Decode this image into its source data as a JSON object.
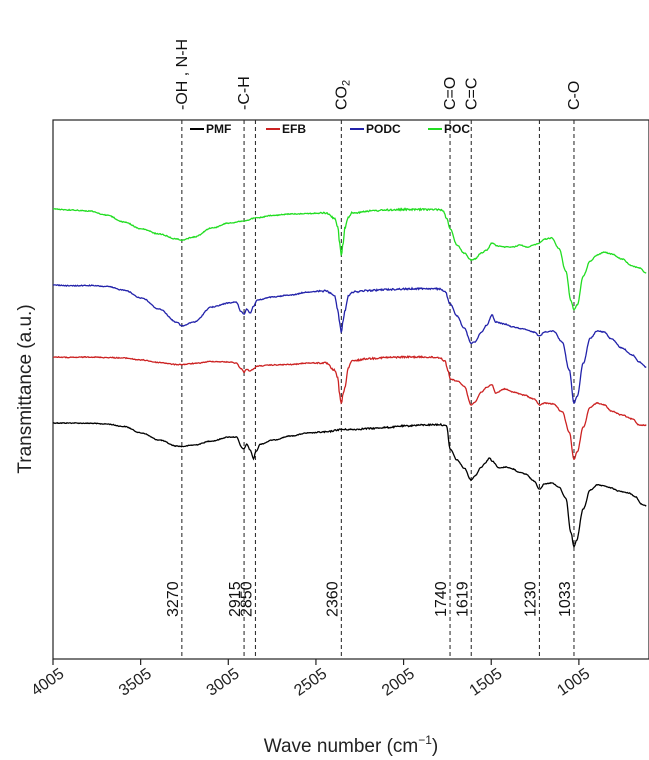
{
  "chart_data": {
    "type": "line",
    "title": "",
    "xlabel_main": "Wave number (cm",
    "xlabel_sup": "−1",
    "xlabel_close": ")",
    "ylabel": "Transmittance (a.u.)",
    "xlim": [
      4005,
      605
    ],
    "x_ticks": [
      "4005",
      "3505",
      "3005",
      "2505",
      "2005",
      "1505",
      "1005"
    ],
    "x_tick_values": [
      4005,
      3505,
      3005,
      2505,
      2005,
      1505,
      1005
    ],
    "y_units": "a.u. (curves offset vertically)",
    "legend": {
      "placement": "top",
      "entries": [
        "PMF",
        "EFB",
        "PODC",
        "POC"
      ]
    },
    "group_labels": [
      {
        "text": "-OH , N-H",
        "x": 3270
      },
      {
        "text": "-C-H",
        "x": 2915
      },
      {
        "text": "CO",
        "sub": "2",
        "x": 2360
      },
      {
        "text": "C=O",
        "x": 1740
      },
      {
        "text": "C=C",
        "x": 1619
      },
      {
        "text": "C-O",
        "x": 1033
      }
    ],
    "peak_lines": [
      {
        "label": "3270",
        "x": 3270
      },
      {
        "label": "2915",
        "x": 2915
      },
      {
        "label": "2850",
        "x": 2850
      },
      {
        "label": "2360",
        "x": 2360
      },
      {
        "label": "1740",
        "x": 1740
      },
      {
        "label": "1619",
        "x": 1619
      },
      {
        "label": "1230",
        "x": 1230
      },
      {
        "label": "1033",
        "x": 1033
      }
    ],
    "series": [
      {
        "name": "PMF",
        "color": "#000000",
        "noise": 0.4,
        "points": [
          [
            4005,
            0.0
          ],
          [
            3900,
            0.05
          ],
          [
            3800,
            0.3
          ],
          [
            3700,
            1.0
          ],
          [
            3600,
            3.5
          ],
          [
            3500,
            10.0
          ],
          [
            3400,
            17.0
          ],
          [
            3300,
            23.0
          ],
          [
            3270,
            23.5
          ],
          [
            3200,
            22.0
          ],
          [
            3100,
            18.0
          ],
          [
            3000,
            14.0
          ],
          [
            2960,
            14.0
          ],
          [
            2925,
            25.0
          ],
          [
            2915,
            26.0
          ],
          [
            2900,
            21.0
          ],
          [
            2880,
            27.0
          ],
          [
            2860,
            36.0
          ],
          [
            2850,
            29.0
          ],
          [
            2820,
            21.0
          ],
          [
            2750,
            17.0
          ],
          [
            2650,
            13.0
          ],
          [
            2550,
            10.0
          ],
          [
            2450,
            9.0
          ],
          [
            2360,
            6.5
          ],
          [
            2300,
            6.5
          ],
          [
            2200,
            5.5
          ],
          [
            2100,
            4.5
          ],
          [
            2000,
            3.0
          ],
          [
            1900,
            2.0
          ],
          [
            1800,
            1.5
          ],
          [
            1760,
            3.0
          ],
          [
            1740,
            26.0
          ],
          [
            1700,
            37.0
          ],
          [
            1660,
            45.0
          ],
          [
            1619,
            57.0
          ],
          [
            1600,
            53.0
          ],
          [
            1560,
            44.0
          ],
          [
            1540,
            40.0
          ],
          [
            1515,
            35.0
          ],
          [
            1500,
            38.0
          ],
          [
            1460,
            45.0
          ],
          [
            1420,
            44.0
          ],
          [
            1380,
            46.0
          ],
          [
            1350,
            49.0
          ],
          [
            1310,
            51.0
          ],
          [
            1260,
            58.0
          ],
          [
            1230,
            66.0
          ],
          [
            1200,
            61.0
          ],
          [
            1160,
            60.0
          ],
          [
            1120,
            64.0
          ],
          [
            1080,
            75.0
          ],
          [
            1050,
            110.0
          ],
          [
            1033,
            124.0
          ],
          [
            1020,
            118.0
          ],
          [
            980,
            86.0
          ],
          [
            940,
            67.0
          ],
          [
            900,
            62.0
          ],
          [
            860,
            63.0
          ],
          [
            820,
            65.0
          ],
          [
            780,
            68.0
          ],
          [
            720,
            70.0
          ],
          [
            680,
            74.0
          ],
          [
            650,
            81.0
          ],
          [
            620,
            83.0
          ]
        ]
      },
      {
        "name": "EFB",
        "color": "#cc2222",
        "noise": 0.45,
        "points": [
          [
            4005,
            0.0
          ],
          [
            3900,
            0.5
          ],
          [
            3800,
            0.0
          ],
          [
            3700,
            0.5
          ],
          [
            3600,
            1.0
          ],
          [
            3500,
            3.0
          ],
          [
            3400,
            5.5
          ],
          [
            3300,
            7.5
          ],
          [
            3270,
            7.5
          ],
          [
            3200,
            6.5
          ],
          [
            3100,
            4.5
          ],
          [
            3000,
            5.0
          ],
          [
            2960,
            6.0
          ],
          [
            2930,
            12.0
          ],
          [
            2915,
            15.0
          ],
          [
            2900,
            12.0
          ],
          [
            2880,
            14.0
          ],
          [
            2860,
            12.0
          ],
          [
            2840,
            9.0
          ],
          [
            2750,
            8.0
          ],
          [
            2650,
            7.5
          ],
          [
            2550,
            6.0
          ],
          [
            2450,
            6.0
          ],
          [
            2400,
            13.0
          ],
          [
            2380,
            21.0
          ],
          [
            2370,
            38.0
          ],
          [
            2360,
            47.0
          ],
          [
            2350,
            37.0
          ],
          [
            2340,
            30.0
          ],
          [
            2320,
            11.0
          ],
          [
            2300,
            4.0
          ],
          [
            2200,
            1.5
          ],
          [
            2100,
            0.5
          ],
          [
            2000,
            0.0
          ],
          [
            1900,
            0.0
          ],
          [
            1800,
            0.5
          ],
          [
            1770,
            4.0
          ],
          [
            1750,
            14.0
          ],
          [
            1740,
            22.0
          ],
          [
            1700,
            24.0
          ],
          [
            1660,
            29.0
          ],
          [
            1619,
            48.0
          ],
          [
            1600,
            45.0
          ],
          [
            1560,
            35.0
          ],
          [
            1530,
            30.0
          ],
          [
            1500,
            28.0
          ],
          [
            1480,
            36.0
          ],
          [
            1430,
            32.0
          ],
          [
            1380,
            35.0
          ],
          [
            1320,
            38.0
          ],
          [
            1260,
            42.0
          ],
          [
            1230,
            48.0
          ],
          [
            1200,
            46.0
          ],
          [
            1150,
            47.0
          ],
          [
            1100,
            55.0
          ],
          [
            1060,
            75.0
          ],
          [
            1033,
            102.0
          ],
          [
            1015,
            95.0
          ],
          [
            980,
            70.0
          ],
          [
            940,
            50.0
          ],
          [
            900,
            46.0
          ],
          [
            860,
            48.0
          ],
          [
            820,
            54.0
          ],
          [
            760,
            58.0
          ],
          [
            700,
            62.0
          ],
          [
            660,
            68.0
          ],
          [
            620,
            68.0
          ]
        ]
      },
      {
        "name": "PODC",
        "color": "#2222aa",
        "noise": 0.45,
        "points": [
          [
            4005,
            0.0
          ],
          [
            3900,
            0.8
          ],
          [
            3800,
            0.5
          ],
          [
            3700,
            1.5
          ],
          [
            3600,
            5.0
          ],
          [
            3500,
            13.0
          ],
          [
            3400,
            24.0
          ],
          [
            3300,
            37.0
          ],
          [
            3270,
            41.0
          ],
          [
            3200,
            37.0
          ],
          [
            3100,
            22.0
          ],
          [
            3000,
            18.0
          ],
          [
            2960,
            17.0
          ],
          [
            2930,
            27.0
          ],
          [
            2915,
            29.0
          ],
          [
            2900,
            24.0
          ],
          [
            2880,
            28.0
          ],
          [
            2860,
            21.0
          ],
          [
            2840,
            15.0
          ],
          [
            2750,
            12.0
          ],
          [
            2650,
            10.0
          ],
          [
            2550,
            7.0
          ],
          [
            2450,
            6.0
          ],
          [
            2400,
            10.0
          ],
          [
            2380,
            25.0
          ],
          [
            2370,
            38.0
          ],
          [
            2360,
            47.0
          ],
          [
            2350,
            35.0
          ],
          [
            2340,
            26.0
          ],
          [
            2320,
            11.0
          ],
          [
            2300,
            7.0
          ],
          [
            2200,
            5.5
          ],
          [
            2100,
            4.5
          ],
          [
            2000,
            4.0
          ],
          [
            1900,
            3.5
          ],
          [
            1800,
            4.0
          ],
          [
            1770,
            6.0
          ],
          [
            1740,
            19.0
          ],
          [
            1700,
            31.0
          ],
          [
            1660,
            43.0
          ],
          [
            1619,
            58.0
          ],
          [
            1600,
            57.0
          ],
          [
            1560,
            47.0
          ],
          [
            1530,
            40.0
          ],
          [
            1500,
            30.0
          ],
          [
            1480,
            37.0
          ],
          [
            1430,
            39.0
          ],
          [
            1380,
            42.0
          ],
          [
            1320,
            44.0
          ],
          [
            1260,
            47.0
          ],
          [
            1230,
            51.0
          ],
          [
            1200,
            47.0
          ],
          [
            1150,
            46.0
          ],
          [
            1100,
            57.0
          ],
          [
            1060,
            85.0
          ],
          [
            1033,
            118.0
          ],
          [
            1015,
            111.0
          ],
          [
            980,
            78.0
          ],
          [
            940,
            53.0
          ],
          [
            900,
            46.0
          ],
          [
            860,
            47.0
          ],
          [
            820,
            54.0
          ],
          [
            760,
            63.0
          ],
          [
            700,
            70.0
          ],
          [
            660,
            77.0
          ],
          [
            620,
            82.0
          ]
        ]
      },
      {
        "name": "POC",
        "color": "#22dd22",
        "noise": 0.45,
        "points": [
          [
            4005,
            0.0
          ],
          [
            3900,
            1.0
          ],
          [
            3800,
            2.0
          ],
          [
            3700,
            6.0
          ],
          [
            3600,
            13.0
          ],
          [
            3500,
            20.0
          ],
          [
            3400,
            25.0
          ],
          [
            3300,
            30.0
          ],
          [
            3270,
            31.0
          ],
          [
            3200,
            28.0
          ],
          [
            3100,
            19.0
          ],
          [
            3000,
            14.0
          ],
          [
            2915,
            12.0
          ],
          [
            2850,
            9.0
          ],
          [
            2750,
            6.5
          ],
          [
            2650,
            5.0
          ],
          [
            2550,
            4.5
          ],
          [
            2450,
            4.0
          ],
          [
            2400,
            9.0
          ],
          [
            2380,
            18.0
          ],
          [
            2370,
            34.0
          ],
          [
            2360,
            47.0
          ],
          [
            2350,
            34.0
          ],
          [
            2340,
            19.0
          ],
          [
            2320,
            8.0
          ],
          [
            2300,
            4.0
          ],
          [
            2200,
            2.0
          ],
          [
            2100,
            1.0
          ],
          [
            2000,
            0.5
          ],
          [
            1900,
            0.5
          ],
          [
            1800,
            0.5
          ],
          [
            1780,
            1.5
          ],
          [
            1760,
            9.0
          ],
          [
            1740,
            20.0
          ],
          [
            1700,
            36.0
          ],
          [
            1660,
            44.0
          ],
          [
            1619,
            51.0
          ],
          [
            1600,
            50.0
          ],
          [
            1560,
            44.0
          ],
          [
            1530,
            41.0
          ],
          [
            1500,
            34.0
          ],
          [
            1470,
            37.0
          ],
          [
            1430,
            38.0
          ],
          [
            1380,
            38.0
          ],
          [
            1340,
            36.0
          ],
          [
            1300,
            38.0
          ],
          [
            1260,
            36.0
          ],
          [
            1230,
            34.0
          ],
          [
            1200,
            30.0
          ],
          [
            1160,
            29.0
          ],
          [
            1120,
            39.0
          ],
          [
            1080,
            62.0
          ],
          [
            1050,
            92.0
          ],
          [
            1033,
            101.0
          ],
          [
            1015,
            96.0
          ],
          [
            980,
            67.0
          ],
          [
            940,
            52.0
          ],
          [
            900,
            46.0
          ],
          [
            860,
            43.0
          ],
          [
            820,
            45.0
          ],
          [
            760,
            50.0
          ],
          [
            700,
            57.0
          ],
          [
            660,
            59.0
          ],
          [
            620,
            64.0
          ]
        ]
      }
    ]
  }
}
